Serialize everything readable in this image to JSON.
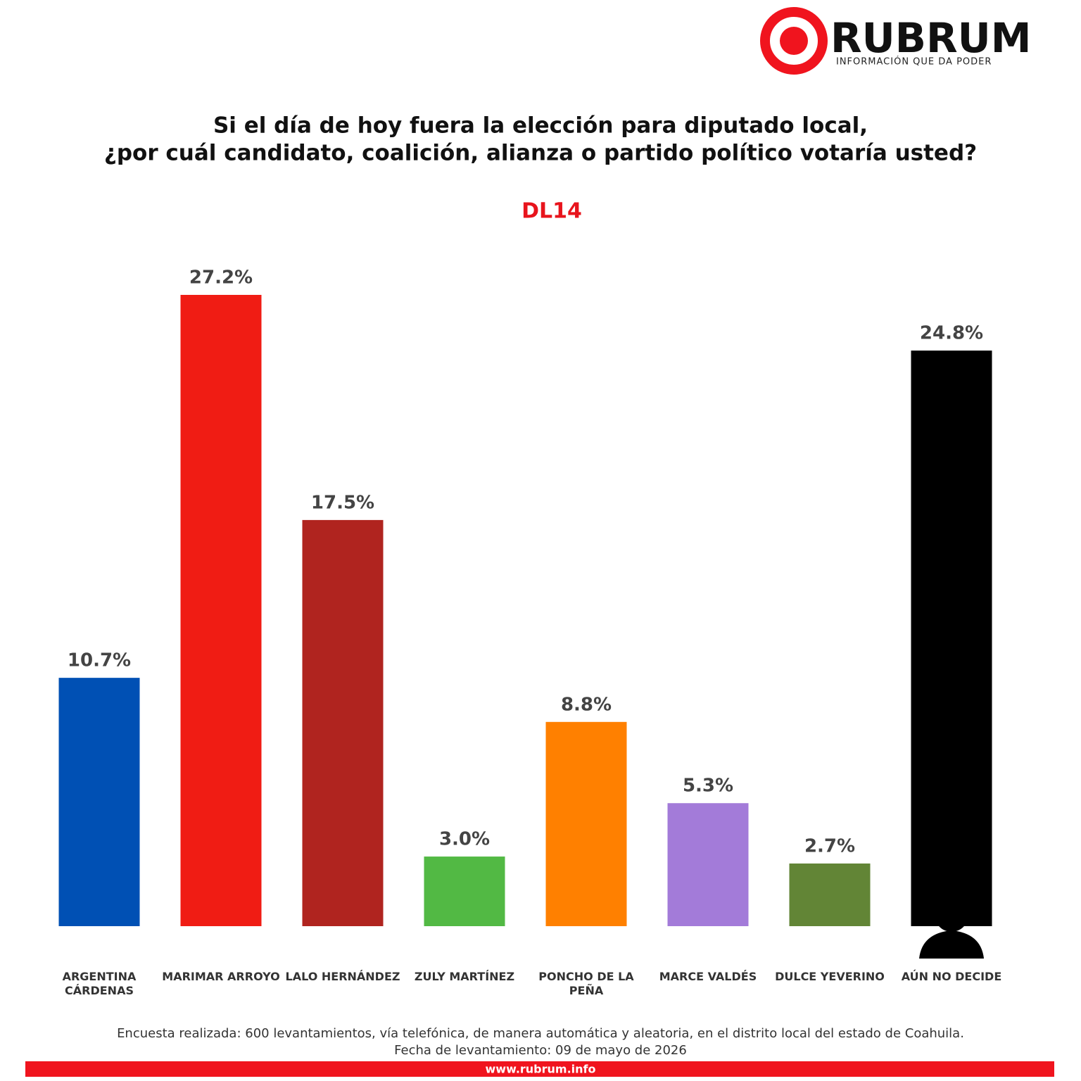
{
  "brand": {
    "name": "RUBRUM",
    "tagline": "INFORMACIÓN QUE DA PODER"
  },
  "chart_data": {
    "type": "bar",
    "title": [
      "Si el día de hoy fuera la elección para diputado local,",
      "¿por cuál candidato, coalición, alianza o partido político votaría usted?"
    ],
    "subtitle": "DL14",
    "categories": [
      "ARGENTINA CÁRDENAS",
      "MARIMAR ARROYO",
      "LALO HERNÁNDEZ",
      "ZULY MARTÍNEZ",
      "PONCHO DE LA PEÑA",
      "MARCE VALDÉS",
      "DULCE YEVERINO",
      "AÚN NO DECIDE"
    ],
    "values": [
      10.7,
      27.2,
      17.5,
      3.0,
      8.8,
      5.3,
      2.7,
      24.8
    ],
    "value_labels": [
      "10.7%",
      "27.2%",
      "17.5%",
      "3.0%",
      "8.8%",
      "5.3%",
      "2.7%",
      "24.8%"
    ],
    "colors": [
      "#0050b4",
      "#f01c14",
      "#b0241f",
      "#52b944",
      "#ff8000",
      "#a37bd9",
      "#628536",
      "#000000"
    ]
  },
  "footer": {
    "note": [
      "Encuesta realizada: 600 levantamientos, vía telefónica, de manera automática y aleatoria, en el distrito local  del estado de Coahuila.",
      "Fecha de levantamiento: 09 de mayo de 2026"
    ],
    "url": "www.rubrum.info"
  }
}
